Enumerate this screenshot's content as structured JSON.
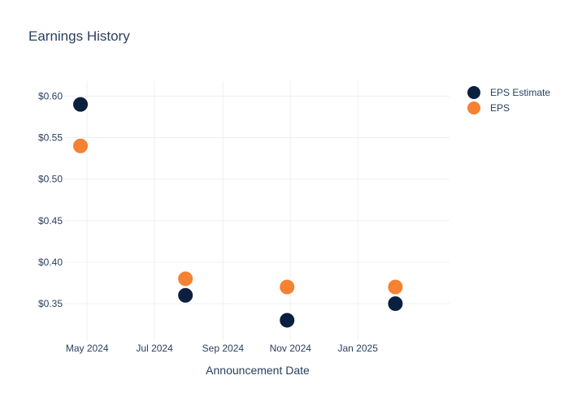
{
  "chart_data": {
    "type": "scatter",
    "title": "Earnings History",
    "xlabel": "Announcement Date",
    "ylabel": "",
    "x_axis_type": "date",
    "xlim": [
      "2024-04-11",
      "2025-03-25"
    ],
    "ylim": [
      0.305,
      0.618
    ],
    "x_ticks": [
      {
        "date": "2024-05-01",
        "label": "May 2024"
      },
      {
        "date": "2024-07-01",
        "label": "Jul 2024"
      },
      {
        "date": "2024-09-01",
        "label": "Sep 2024"
      },
      {
        "date": "2024-11-01",
        "label": "Nov 2024"
      },
      {
        "date": "2025-01-01",
        "label": "Jan 2025"
      }
    ],
    "y_ticks": [
      {
        "value": 0.35,
        "label": "$0.35"
      },
      {
        "value": 0.4,
        "label": "$0.40"
      },
      {
        "value": 0.45,
        "label": "$0.45"
      },
      {
        "value": 0.5,
        "label": "$0.50"
      },
      {
        "value": 0.55,
        "label": "$0.55"
      },
      {
        "value": 0.6,
        "label": "$0.60"
      }
    ],
    "grid": true,
    "legend_position": "top-right",
    "series": [
      {
        "name": "EPS Estimate",
        "color": "#0b1f3f",
        "points": [
          {
            "x": "2024-04-25",
            "y": 0.59
          },
          {
            "x": "2024-07-29",
            "y": 0.36
          },
          {
            "x": "2024-10-29",
            "y": 0.33
          },
          {
            "x": "2025-02-04",
            "y": 0.35
          }
        ]
      },
      {
        "name": "EPS",
        "color": "#f58132",
        "points": [
          {
            "x": "2024-04-25",
            "y": 0.54
          },
          {
            "x": "2024-07-29",
            "y": 0.38
          },
          {
            "x": "2024-10-29",
            "y": 0.37
          },
          {
            "x": "2025-02-04",
            "y": 0.37
          }
        ]
      }
    ]
  }
}
